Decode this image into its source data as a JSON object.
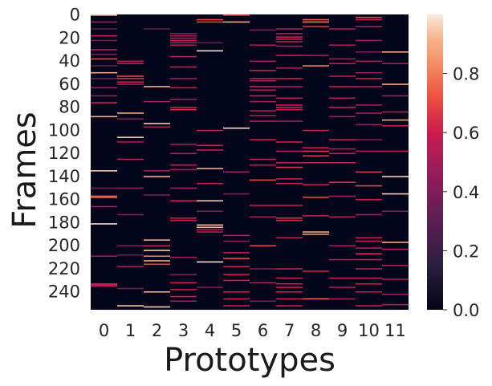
{
  "chart_data": {
    "type": "heatmap",
    "xlabel": "Prototypes",
    "ylabel": "Frames",
    "x_categories": [
      "0",
      "1",
      "2",
      "3",
      "4",
      "5",
      "6",
      "7",
      "8",
      "9",
      "10",
      "11"
    ],
    "y_tick_labels": [
      "0",
      "20",
      "40",
      "60",
      "80",
      "100",
      "120",
      "140",
      "160",
      "180",
      "200",
      "220",
      "240"
    ],
    "y_tick_values": [
      0,
      20,
      40,
      60,
      80,
      100,
      120,
      140,
      160,
      180,
      200,
      220,
      240
    ],
    "n_frames": 256,
    "colorbar": {
      "ticks": [
        "0.0",
        "0.2",
        "0.4",
        "0.6",
        "0.8"
      ],
      "tick_values": [
        0.0,
        0.2,
        0.4,
        0.6,
        0.8
      ],
      "range": [
        0.0,
        1.0
      ]
    },
    "colormap": "rocket",
    "description_values": "Each frame assigns weights across 12 prototypes; most cells near 0.0, with sparse bright stripes up to ~1.0.",
    "stripes": [
      [
        0,
        0,
        0.95
      ],
      [
        0,
        6,
        0.5
      ],
      [
        0,
        12,
        0.3
      ],
      [
        0,
        18,
        0.6
      ],
      [
        0,
        22,
        0.35
      ],
      [
        0,
        30,
        0.55
      ],
      [
        0,
        34,
        0.4
      ],
      [
        0,
        38,
        0.7
      ],
      [
        0,
        44,
        0.3
      ],
      [
        0,
        50,
        0.9
      ],
      [
        0,
        55,
        0.35
      ],
      [
        0,
        63,
        0.5
      ],
      [
        0,
        70,
        0.45
      ],
      [
        0,
        76,
        0.6
      ],
      [
        0,
        88,
        0.9
      ],
      [
        0,
        135,
        0.95
      ],
      [
        0,
        150,
        0.4
      ],
      [
        0,
        157,
        0.75
      ],
      [
        0,
        158,
        0.75
      ],
      [
        0,
        166,
        0.5
      ],
      [
        0,
        181,
        0.98
      ],
      [
        0,
        209,
        0.5
      ],
      [
        0,
        233,
        0.6
      ],
      [
        0,
        234,
        0.6
      ],
      [
        0,
        235,
        0.5
      ],
      [
        1,
        40,
        0.5
      ],
      [
        1,
        42,
        0.6
      ],
      [
        1,
        53,
        0.7
      ],
      [
        1,
        55,
        0.65
      ],
      [
        1,
        58,
        0.6
      ],
      [
        1,
        60,
        0.5
      ],
      [
        1,
        85,
        0.9
      ],
      [
        1,
        90,
        0.4
      ],
      [
        1,
        106,
        0.95
      ],
      [
        1,
        110,
        0.5
      ],
      [
        1,
        125,
        0.6
      ],
      [
        1,
        150,
        0.45
      ],
      [
        1,
        173,
        0.4
      ],
      [
        1,
        200,
        0.4
      ],
      [
        1,
        208,
        0.3
      ],
      [
        1,
        218,
        0.5
      ],
      [
        1,
        237,
        0.35
      ],
      [
        1,
        252,
        0.95
      ],
      [
        2,
        12,
        0.3
      ],
      [
        2,
        62,
        0.9
      ],
      [
        2,
        75,
        0.5
      ],
      [
        2,
        94,
        0.95
      ],
      [
        2,
        97,
        0.5
      ],
      [
        2,
        135,
        0.5
      ],
      [
        2,
        140,
        0.9
      ],
      [
        2,
        156,
        0.4
      ],
      [
        2,
        195,
        0.9
      ],
      [
        2,
        200,
        0.6
      ],
      [
        2,
        204,
        0.95
      ],
      [
        2,
        209,
        0.8
      ],
      [
        2,
        213,
        0.9
      ],
      [
        2,
        216,
        0.7
      ],
      [
        2,
        240,
        0.9
      ],
      [
        2,
        253,
        0.95
      ],
      [
        3,
        16,
        0.4
      ],
      [
        3,
        18,
        0.5
      ],
      [
        3,
        20,
        0.55
      ],
      [
        3,
        22,
        0.6
      ],
      [
        3,
        24,
        0.55
      ],
      [
        3,
        26,
        0.5
      ],
      [
        3,
        36,
        0.6
      ],
      [
        3,
        45,
        0.6
      ],
      [
        3,
        55,
        0.5
      ],
      [
        3,
        63,
        0.6
      ],
      [
        3,
        73,
        0.5
      ],
      [
        3,
        80,
        0.6
      ],
      [
        3,
        82,
        0.65
      ],
      [
        3,
        112,
        0.5
      ],
      [
        3,
        120,
        0.55
      ],
      [
        3,
        130,
        0.6
      ],
      [
        3,
        134,
        0.55
      ],
      [
        3,
        150,
        0.5
      ],
      [
        3,
        161,
        0.6
      ],
      [
        3,
        176,
        0.6
      ],
      [
        3,
        178,
        0.6
      ],
      [
        3,
        210,
        0.5
      ],
      [
        3,
        225,
        0.4
      ],
      [
        3,
        232,
        0.6
      ],
      [
        3,
        238,
        0.6
      ],
      [
        3,
        244,
        0.6
      ],
      [
        3,
        248,
        0.5
      ],
      [
        4,
        4,
        0.7
      ],
      [
        4,
        6,
        0.7
      ],
      [
        4,
        24,
        0.3
      ],
      [
        4,
        31,
        0.98
      ],
      [
        4,
        100,
        0.6
      ],
      [
        4,
        113,
        0.6
      ],
      [
        4,
        117,
        0.6
      ],
      [
        4,
        133,
        0.9
      ],
      [
        4,
        146,
        0.6
      ],
      [
        4,
        161,
        0.95
      ],
      [
        4,
        170,
        0.4
      ],
      [
        4,
        182,
        0.95
      ],
      [
        4,
        184,
        0.92
      ],
      [
        4,
        186,
        0.5
      ],
      [
        4,
        188,
        0.55
      ],
      [
        4,
        214,
        0.98
      ],
      [
        4,
        236,
        0.4
      ],
      [
        5,
        0,
        0.7
      ],
      [
        5,
        6,
        0.9
      ],
      [
        5,
        98,
        0.98
      ],
      [
        5,
        136,
        0.5
      ],
      [
        5,
        155,
        0.4
      ],
      [
        5,
        191,
        0.5
      ],
      [
        5,
        196,
        0.45
      ],
      [
        5,
        206,
        0.6
      ],
      [
        5,
        211,
        0.7
      ],
      [
        5,
        218,
        0.6
      ],
      [
        5,
        225,
        0.6
      ],
      [
        5,
        230,
        0.6
      ],
      [
        5,
        240,
        0.6
      ],
      [
        5,
        246,
        0.6
      ],
      [
        5,
        252,
        0.6
      ],
      [
        6,
        13,
        0.4
      ],
      [
        6,
        26,
        0.5
      ],
      [
        6,
        40,
        0.5
      ],
      [
        6,
        48,
        0.6
      ],
      [
        6,
        55,
        0.55
      ],
      [
        6,
        57,
        0.55
      ],
      [
        6,
        62,
        0.6
      ],
      [
        6,
        65,
        0.5
      ],
      [
        6,
        70,
        0.6
      ],
      [
        6,
        75,
        0.5
      ],
      [
        6,
        83,
        0.55
      ],
      [
        6,
        87,
        0.5
      ],
      [
        6,
        92,
        0.55
      ],
      [
        6,
        108,
        0.6
      ],
      [
        6,
        125,
        0.6
      ],
      [
        6,
        130,
        0.55
      ],
      [
        6,
        143,
        0.7
      ],
      [
        6,
        165,
        0.6
      ],
      [
        6,
        175,
        0.5
      ],
      [
        6,
        200,
        0.7
      ],
      [
        6,
        220,
        0.4
      ],
      [
        6,
        232,
        0.5
      ],
      [
        6,
        248,
        0.4
      ],
      [
        7,
        12,
        0.5
      ],
      [
        7,
        16,
        0.55
      ],
      [
        7,
        19,
        0.6
      ],
      [
        7,
        21,
        0.6
      ],
      [
        7,
        23,
        0.55
      ],
      [
        7,
        27,
        0.5
      ],
      [
        7,
        35,
        0.6
      ],
      [
        7,
        46,
        0.55
      ],
      [
        7,
        55,
        0.6
      ],
      [
        7,
        62,
        0.5
      ],
      [
        7,
        72,
        0.55
      ],
      [
        7,
        78,
        0.6
      ],
      [
        7,
        80,
        0.6
      ],
      [
        7,
        82,
        0.6
      ],
      [
        7,
        92,
        0.5
      ],
      [
        7,
        110,
        0.6
      ],
      [
        7,
        118,
        0.55
      ],
      [
        7,
        128,
        0.6
      ],
      [
        7,
        132,
        0.65
      ],
      [
        7,
        142,
        0.6
      ],
      [
        7,
        146,
        0.6
      ],
      [
        7,
        165,
        0.6
      ],
      [
        7,
        176,
        0.65
      ],
      [
        7,
        178,
        0.65
      ],
      [
        7,
        193,
        0.55
      ],
      [
        7,
        220,
        0.6
      ],
      [
        7,
        228,
        0.6
      ],
      [
        7,
        233,
        0.6
      ],
      [
        7,
        236,
        0.6
      ],
      [
        7,
        240,
        0.6
      ],
      [
        7,
        246,
        0.6
      ],
      [
        7,
        252,
        0.6
      ],
      [
        8,
        4,
        0.75
      ],
      [
        8,
        6,
        0.8
      ],
      [
        8,
        10,
        0.65
      ],
      [
        8,
        35,
        0.5
      ],
      [
        8,
        44,
        0.8
      ],
      [
        8,
        100,
        0.6
      ],
      [
        8,
        115,
        0.6
      ],
      [
        8,
        118,
        0.65
      ],
      [
        8,
        122,
        0.65
      ],
      [
        8,
        128,
        0.6
      ],
      [
        8,
        147,
        0.6
      ],
      [
        8,
        158,
        0.7
      ],
      [
        8,
        174,
        0.6
      ],
      [
        8,
        188,
        0.88
      ],
      [
        8,
        190,
        0.85
      ],
      [
        8,
        222,
        0.6
      ],
      [
        8,
        246,
        0.75
      ],
      [
        9,
        12,
        0.5
      ],
      [
        9,
        26,
        0.5
      ],
      [
        9,
        38,
        0.5
      ],
      [
        9,
        42,
        0.6
      ],
      [
        9,
        53,
        0.55
      ],
      [
        9,
        62,
        0.6
      ],
      [
        9,
        72,
        0.55
      ],
      [
        9,
        80,
        0.6
      ],
      [
        9,
        88,
        0.5
      ],
      [
        9,
        108,
        0.6
      ],
      [
        9,
        116,
        0.55
      ],
      [
        9,
        120,
        0.6
      ],
      [
        9,
        128,
        0.6
      ],
      [
        9,
        145,
        0.65
      ],
      [
        9,
        157,
        0.5
      ],
      [
        9,
        175,
        0.55
      ],
      [
        9,
        200,
        0.5
      ],
      [
        9,
        212,
        0.55
      ],
      [
        9,
        228,
        0.6
      ],
      [
        9,
        236,
        0.5
      ],
      [
        9,
        246,
        0.5
      ],
      [
        10,
        2,
        0.7
      ],
      [
        10,
        4,
        0.6
      ],
      [
        10,
        10,
        0.5
      ],
      [
        10,
        22,
        0.5
      ],
      [
        10,
        32,
        0.4
      ],
      [
        10,
        40,
        0.5
      ],
      [
        10,
        50,
        0.5
      ],
      [
        10,
        55,
        0.6
      ],
      [
        10,
        62,
        0.55
      ],
      [
        10,
        78,
        0.5
      ],
      [
        10,
        85,
        0.5
      ],
      [
        10,
        95,
        0.5
      ],
      [
        10,
        108,
        0.4
      ],
      [
        10,
        118,
        0.5
      ],
      [
        10,
        136,
        0.65
      ],
      [
        10,
        148,
        0.7
      ],
      [
        10,
        160,
        0.6
      ],
      [
        10,
        173,
        0.5
      ],
      [
        10,
        193,
        0.55
      ],
      [
        10,
        196,
        0.6
      ],
      [
        10,
        202,
        0.55
      ],
      [
        10,
        207,
        0.65
      ],
      [
        10,
        212,
        0.6
      ],
      [
        10,
        220,
        0.55
      ],
      [
        10,
        228,
        0.6
      ],
      [
        10,
        233,
        0.6
      ],
      [
        10,
        240,
        0.55
      ],
      [
        10,
        252,
        0.6
      ],
      [
        11,
        32,
        0.9
      ],
      [
        11,
        42,
        0.5
      ],
      [
        11,
        60,
        0.9
      ],
      [
        11,
        70,
        0.5
      ],
      [
        11,
        84,
        0.55
      ],
      [
        11,
        91,
        0.9
      ],
      [
        11,
        96,
        0.6
      ],
      [
        11,
        118,
        0.55
      ],
      [
        11,
        140,
        0.95
      ],
      [
        11,
        155,
        0.95
      ],
      [
        11,
        170,
        0.4
      ],
      [
        11,
        197,
        0.9
      ],
      [
        11,
        203,
        0.6
      ],
      [
        11,
        217,
        0.55
      ],
      [
        11,
        229,
        0.5
      ],
      [
        11,
        242,
        0.5
      ],
      [
        11,
        251,
        0.55
      ]
    ]
  }
}
